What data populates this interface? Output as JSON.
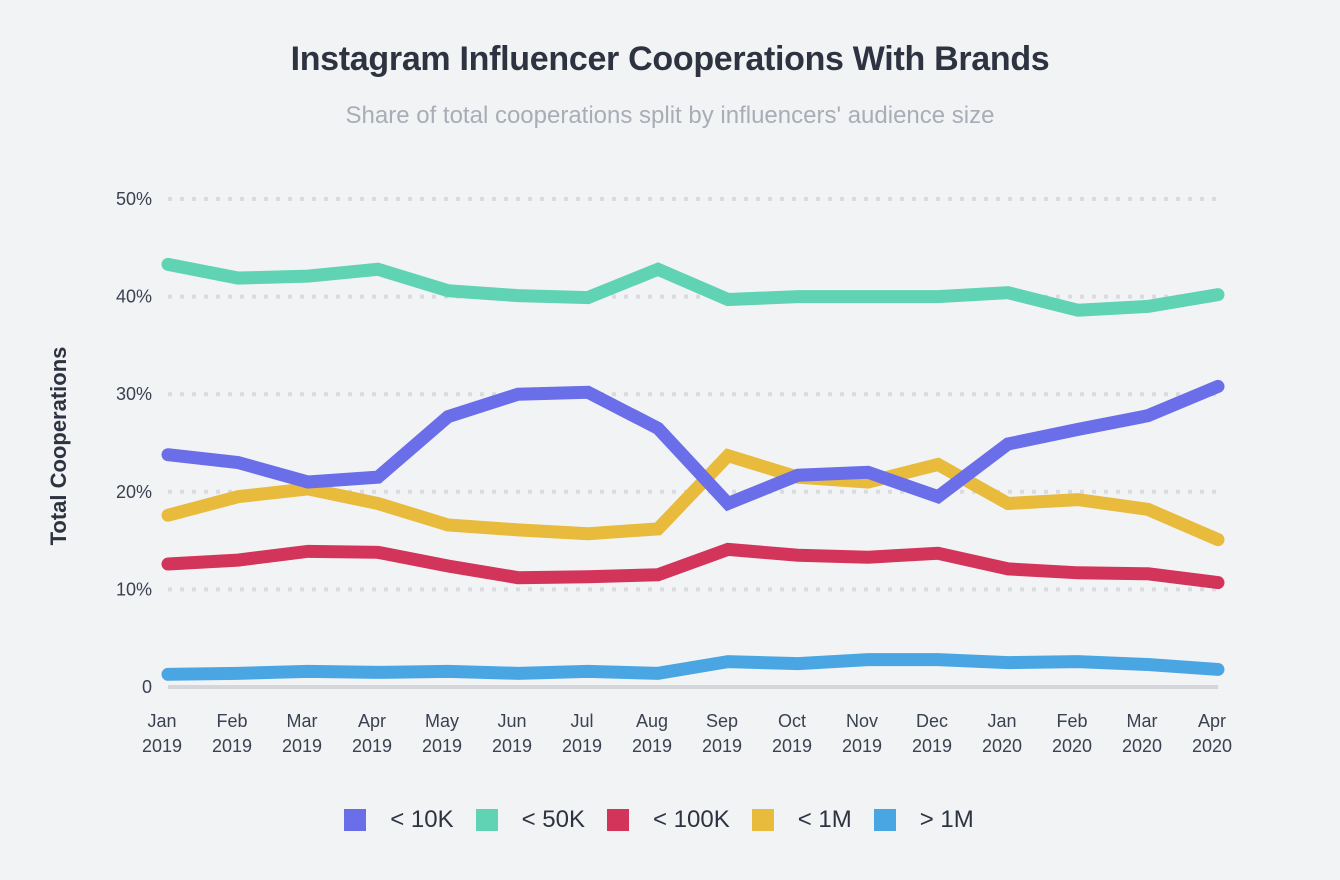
{
  "header": {
    "title": "Instagram Influencer Cooperations With Brands",
    "subtitle": "Share of total cooperations split by influencers' audience size"
  },
  "chart_data": {
    "type": "line",
    "title": "Instagram Influencer Cooperations With Brands",
    "subtitle": "Share of total cooperations split by influencers' audience size",
    "xlabel": "",
    "ylabel": "Total Cooperations",
    "ylim": [
      0,
      50
    ],
    "yticks": [
      {
        "value": 0,
        "label": "0"
      },
      {
        "value": 10,
        "label": "10%"
      },
      {
        "value": 20,
        "label": "20%"
      },
      {
        "value": 30,
        "label": "30%"
      },
      {
        "value": 40,
        "label": "40%"
      },
      {
        "value": 50,
        "label": "50%"
      }
    ],
    "grid": true,
    "legend_position": "bottom-center",
    "categories": [
      [
        "Jan",
        "2019"
      ],
      [
        "Feb",
        "2019"
      ],
      [
        "Mar",
        "2019"
      ],
      [
        "Apr",
        "2019"
      ],
      [
        "May",
        "2019"
      ],
      [
        "Jun",
        "2019"
      ],
      [
        "Jul",
        "2019"
      ],
      [
        "Aug",
        "2019"
      ],
      [
        "Sep",
        "2019"
      ],
      [
        "Oct",
        "2019"
      ],
      [
        "Nov",
        "2019"
      ],
      [
        "Dec",
        "2019"
      ],
      [
        "Jan",
        "2020"
      ],
      [
        "Feb",
        "2020"
      ],
      [
        "Mar",
        "2020"
      ],
      [
        "Apr",
        "2020"
      ]
    ],
    "series": [
      {
        "name": "< 10K",
        "color": "#6a6ee8",
        "values": [
          23.8,
          23.0,
          21.0,
          21.5,
          27.7,
          30.0,
          30.2,
          26.5,
          18.8,
          21.7,
          22.0,
          19.5,
          24.9,
          26.4,
          27.8,
          30.8
        ]
      },
      {
        "name": "< 50K",
        "color": "#5fd3b3",
        "values": [
          43.3,
          41.9,
          42.1,
          42.8,
          40.6,
          40.1,
          39.9,
          42.8,
          39.7,
          40.0,
          40.0,
          40.0,
          40.4,
          38.6,
          39.0,
          40.2
        ]
      },
      {
        "name": "< 100K",
        "color": "#d3345a",
        "values": [
          12.6,
          13.0,
          13.9,
          13.8,
          12.4,
          11.2,
          11.3,
          11.5,
          14.1,
          13.5,
          13.3,
          13.7,
          12.1,
          11.7,
          11.6,
          10.7
        ]
      },
      {
        "name": "< 1M",
        "color": "#e8bb3d",
        "values": [
          17.6,
          19.5,
          20.3,
          18.8,
          16.6,
          16.1,
          15.7,
          16.2,
          23.7,
          21.5,
          21.0,
          22.8,
          18.8,
          19.2,
          18.2,
          15.1
        ]
      },
      {
        "name": "> 1M",
        "color": "#49a6e3",
        "values": [
          1.3,
          1.4,
          1.6,
          1.5,
          1.6,
          1.4,
          1.6,
          1.4,
          2.6,
          2.4,
          2.8,
          2.8,
          2.5,
          2.6,
          2.3,
          1.8
        ]
      }
    ]
  }
}
